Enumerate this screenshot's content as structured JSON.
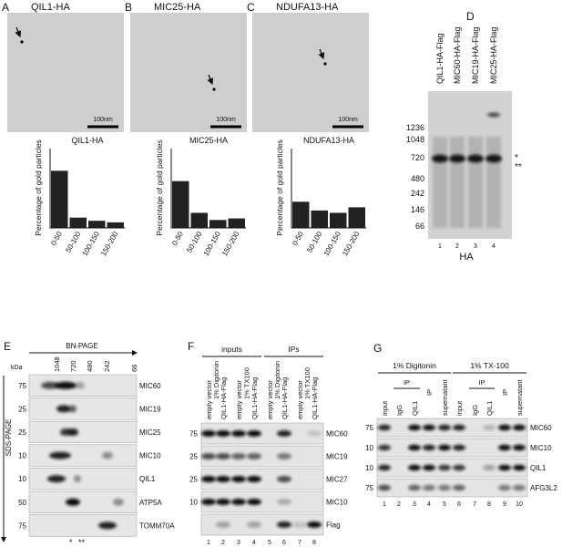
{
  "panels": [
    {
      "label": "A",
      "title": "QIL1-HA",
      "scale_bar": "100nm"
    },
    {
      "label": "B",
      "title": "MIC25-HA",
      "scale_bar": "100nm"
    },
    {
      "label": "C",
      "title": "NDUFA13-HA",
      "scale_bar": "100nm"
    }
  ],
  "chart_data": [
    {
      "type": "bar",
      "title": "QIL1-HA",
      "y_label": "Percentage of gold particles",
      "categories": [
        "0-50",
        "50-100",
        "100-150",
        "150-200"
      ],
      "values": [
        72,
        13,
        9,
        7
      ],
      "ylim": [
        0,
        100
      ],
      "color": "#222222"
    },
    {
      "type": "bar",
      "title": "MIC25-HA",
      "y_label": "Percentage of gold particles",
      "categories": [
        "0-50",
        "50-100",
        "100-150",
        "150-200"
      ],
      "values": [
        59,
        19,
        10,
        12
      ],
      "ylim": [
        0,
        100
      ],
      "color": "#222222"
    },
    {
      "type": "bar",
      "title": "NDUFA13-HA",
      "y_label": "Percentage of gold particles",
      "categories": [
        "0-50",
        "50-100",
        "100-150",
        "150-200"
      ],
      "values": [
        33,
        22,
        19,
        26
      ],
      "ylim": [
        0,
        100
      ],
      "color": "#222222"
    }
  ],
  "blot_d": {
    "label": "D",
    "lanes": [
      "QIL1-HA-Flag",
      "MIC60-HA-Flag",
      "MIC19-HA-Flag",
      "MIC25-HA-Flag"
    ],
    "markers": [
      "1236",
      "1048",
      "720",
      "480",
      "242",
      "146",
      "66"
    ],
    "lane_numbers": [
      "1",
      "2",
      "3",
      "4"
    ],
    "antibody": "HA",
    "asterisks": [
      "*",
      "**"
    ]
  },
  "blot_e": {
    "label": "E",
    "x_axis": "BN-PAGE",
    "y_axis": "SDS-PAGE",
    "unit": "kDa",
    "top_markers": [
      "1048",
      "720",
      "480",
      "242",
      "66"
    ],
    "rows": [
      {
        "name": "MIC60",
        "marker": "75"
      },
      {
        "name": "MIC19",
        "marker": "25"
      },
      {
        "name": "MIC25",
        "marker": "25"
      },
      {
        "name": "MIC10",
        "marker": "10"
      },
      {
        "name": "QIL1",
        "marker": "10"
      },
      {
        "name": "ATP5A",
        "marker": "50"
      },
      {
        "name": "TOMM70A",
        "marker": "75"
      }
    ],
    "asterisks": [
      "*",
      "**"
    ]
  },
  "blot_f": {
    "label": "F",
    "groups": [
      "inputs",
      "IPs"
    ],
    "detergents": [
      "1% Digitonin",
      "1% TX100",
      "1% Digitonin",
      "1% TX100"
    ],
    "lanes": [
      "empty vector",
      "QIL1-HA-Flag",
      "empty vector",
      "QIL1-HA-Flag",
      "empty vector",
      "QIL1-HA-Flag",
      "empty vector",
      "QIL1-HA-Flag"
    ],
    "rows": [
      {
        "name": "MIC60",
        "marker": "75"
      },
      {
        "name": "MIC19",
        "marker": "25"
      },
      {
        "name": "MIC27",
        "marker": "25"
      },
      {
        "name": "MIC10",
        "marker": "10"
      },
      {
        "name": "Flag"
      }
    ],
    "lane_numbers": [
      "1",
      "2",
      "3",
      "4",
      "5",
      "6",
      "7",
      "8"
    ]
  },
  "blot_g": {
    "label": "G",
    "detergents": [
      "1% Digitonin",
      "1% TX-100"
    ],
    "subgroups": [
      "IP",
      "IP",
      "supernatant",
      "IP",
      "IP",
      "supernatant"
    ],
    "lanes": [
      "input",
      "IgG",
      "QIL1",
      "IgG",
      "QIL1",
      "input",
      "IgG",
      "QIL1",
      "IgG",
      "QIL1"
    ],
    "rows": [
      {
        "name": "MIC60",
        "marker": "75"
      },
      {
        "name": "MIC10",
        "marker": "10"
      },
      {
        "name": "QIL1",
        "marker": "10"
      },
      {
        "name": "AFG3L2",
        "marker": "75"
      }
    ],
    "lane_numbers": [
      "1",
      "2",
      "3",
      "4",
      "5",
      "6",
      "7",
      "8",
      "9",
      "10"
    ]
  }
}
